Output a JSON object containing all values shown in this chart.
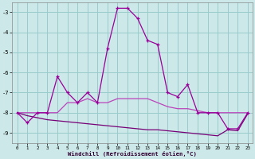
{
  "xlabel": "Windchill (Refroidissement éolien,°C)",
  "x": [
    0,
    1,
    2,
    3,
    4,
    5,
    6,
    7,
    8,
    9,
    10,
    11,
    12,
    13,
    14,
    15,
    16,
    17,
    18,
    19,
    20,
    21,
    22,
    23
  ],
  "line1": [
    -8.0,
    -8.5,
    -8.0,
    -8.0,
    -6.2,
    -7.0,
    -7.5,
    -7.0,
    -7.5,
    -4.8,
    -2.8,
    -2.8,
    -3.3,
    -4.4,
    -4.6,
    -7.0,
    -7.2,
    -6.6,
    -8.0,
    -8.0,
    -8.0,
    -8.8,
    -8.8,
    -8.0
  ],
  "line2": [
    -8.0,
    -8.0,
    -8.0,
    -8.0,
    -8.0,
    -7.5,
    -7.5,
    -7.3,
    -7.5,
    -7.5,
    -7.3,
    -7.3,
    -7.3,
    -7.3,
    -7.5,
    -7.7,
    -7.8,
    -7.8,
    -7.9,
    -8.0,
    -8.0,
    -8.0,
    -8.0,
    -8.0
  ],
  "line3": [
    -8.0,
    -8.15,
    -8.25,
    -8.35,
    -8.4,
    -8.45,
    -8.5,
    -8.55,
    -8.6,
    -8.65,
    -8.7,
    -8.75,
    -8.8,
    -8.85,
    -8.85,
    -8.9,
    -8.95,
    -9.0,
    -9.05,
    -9.1,
    -9.15,
    -8.85,
    -8.9,
    -8.05
  ],
  "bg_color": "#cce8e8",
  "grid_color": "#99cccc",
  "line1_color": "#990099",
  "line2_color": "#bb44bb",
  "line3_color": "#770077",
  "ylim": [
    -9.5,
    -2.5
  ],
  "xlim": [
    -0.5,
    23.5
  ],
  "yticks": [
    -9,
    -8,
    -7,
    -6,
    -5,
    -4,
    -3
  ],
  "xticks": [
    0,
    1,
    2,
    3,
    4,
    5,
    6,
    7,
    8,
    9,
    10,
    11,
    12,
    13,
    14,
    15,
    16,
    17,
    18,
    19,
    20,
    21,
    22,
    23
  ]
}
